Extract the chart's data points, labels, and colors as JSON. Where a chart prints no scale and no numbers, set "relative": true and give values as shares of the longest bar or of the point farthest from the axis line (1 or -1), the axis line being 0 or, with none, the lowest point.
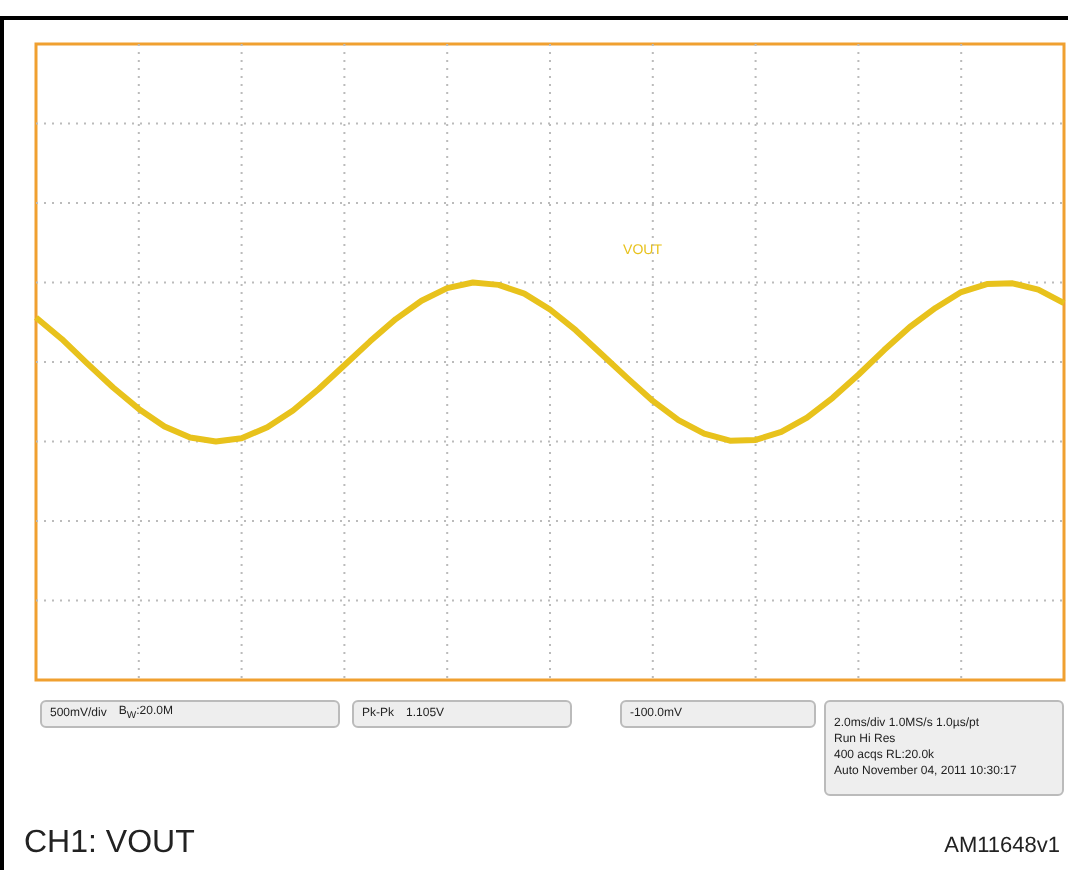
{
  "chart_data": {
    "type": "line",
    "relative": true,
    "grid": true,
    "legend": false,
    "marker": "none",
    "line_style": "solid",
    "categories": [
      null,
      null,
      null,
      null,
      null,
      null,
      null,
      null,
      null,
      null,
      null,
      null,
      null,
      null,
      null,
      null,
      null,
      null,
      null,
      null,
      null,
      null,
      null,
      null,
      null,
      null,
      null,
      null,
      null,
      null,
      null,
      null,
      null,
      null,
      null,
      null,
      null,
      null,
      null,
      null,
      null
    ],
    "series": [
      {
        "name": "VOUT",
        "color": "#e8c21c",
        "values": [
          0.56,
          0.29,
          -0.02,
          -0.32,
          -0.59,
          -0.81,
          -0.95,
          -1.0,
          -0.96,
          -0.82,
          -0.61,
          -0.34,
          -0.04,
          0.26,
          0.54,
          0.77,
          0.93,
          1.0,
          0.97,
          0.86,
          0.66,
          0.4,
          0.1,
          -0.2,
          -0.49,
          -0.73,
          -0.9,
          -0.99,
          -0.98,
          -0.88,
          -0.7,
          -0.45,
          -0.16,
          0.15,
          0.44,
          0.68,
          0.88,
          0.98,
          0.99,
          0.91,
          0.74
        ]
      }
    ],
    "annotations": [
      "500mV/div",
      "B$_{W}$:20.0M",
      "Pk-Pk",
      "1.105V",
      "-100.0mV",
      "2.0ms/div 1.0MS/s 1.0µs/pt",
      "Run Hi Res",
      "400 acqs RL:20.0k",
      "Auto November 04, 2011 10:30:17",
      "CH1: VOUT",
      "AM11648v1"
    ]
  }
}
